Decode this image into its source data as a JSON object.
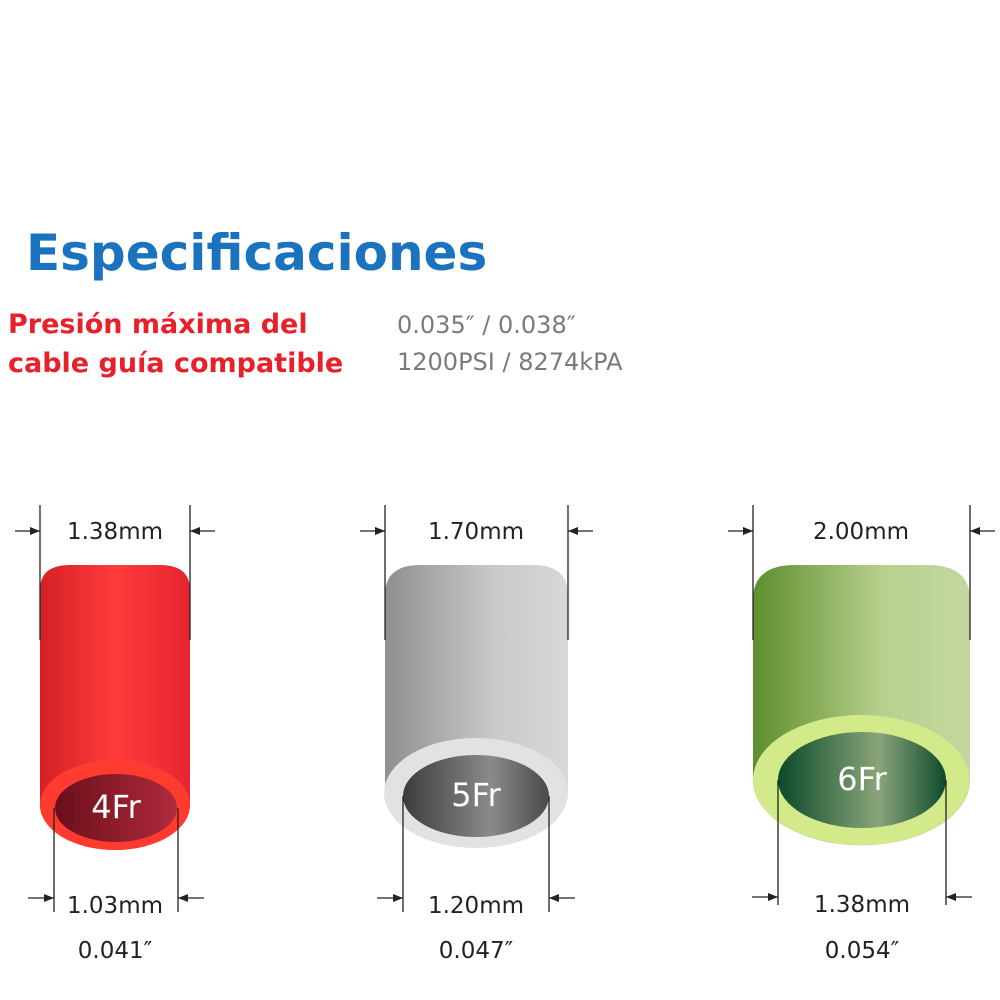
{
  "title": "Especificaciones",
  "spec_label_lines": [
    "Presión máxima del",
    "cable guía compatible"
  ],
  "spec_value_lines": [
    "0.035″ / 0.038″",
    "1200PSI / 8274kPA"
  ],
  "tubes": [
    {
      "outer": "1.38mm",
      "label": "4Fr",
      "inner": "1.03mm",
      "inch": "0.041″"
    },
    {
      "outer": "1.70mm",
      "label": "5Fr",
      "inner": "1.20mm",
      "inch": "0.047″"
    },
    {
      "outer": "2.00mm",
      "label": "6Fr",
      "inner": "1.38mm",
      "inch": "0.054″"
    }
  ]
}
